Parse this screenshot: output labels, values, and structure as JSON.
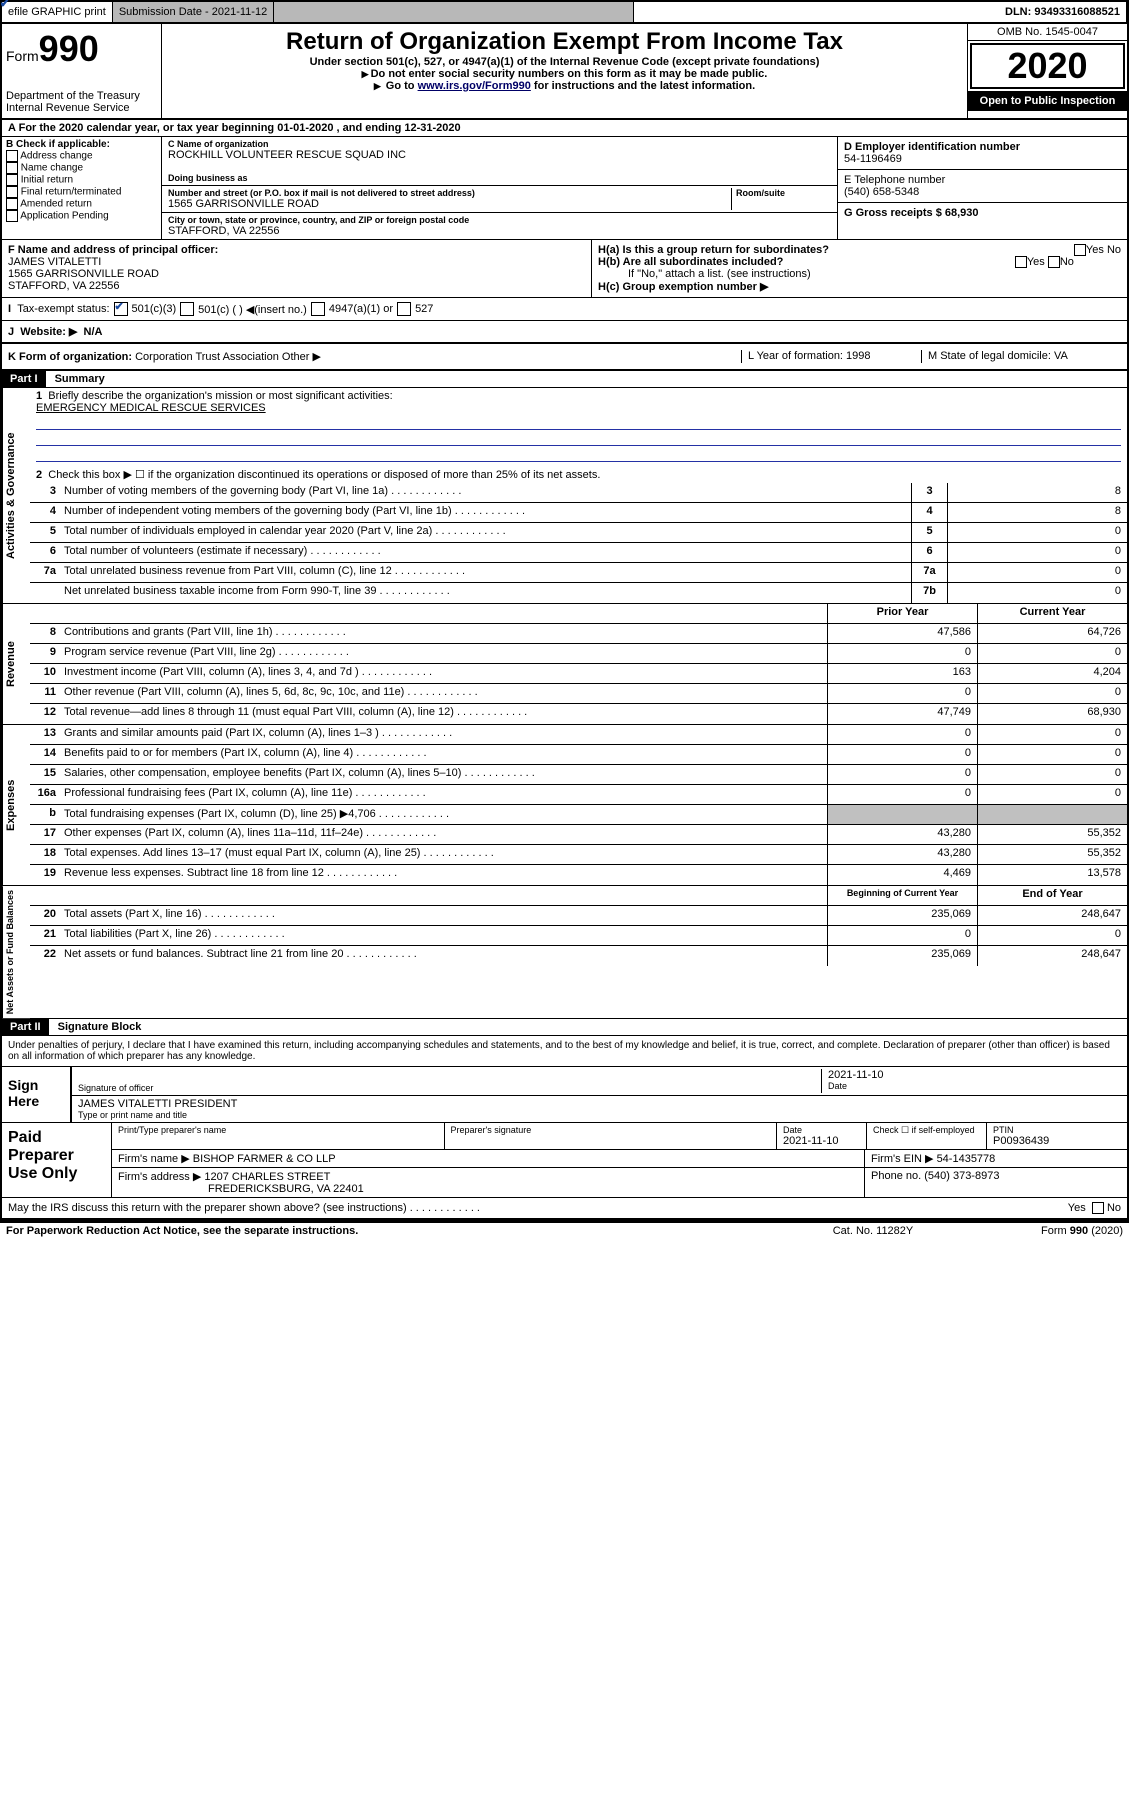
{
  "topbar": {
    "efile": "efile GRAPHIC print",
    "submission": "Submission Date - 2021-11-12",
    "dln": "DLN: 93493316088521"
  },
  "header": {
    "form_label": "Form",
    "form_num": "990",
    "dept": "Department of the Treasury\nInternal Revenue Service",
    "title": "Return of Organization Exempt From Income Tax",
    "sub": "Under section 501(c), 527, or 4947(a)(1) of the Internal Revenue Code (except private foundations)",
    "note1": "Do not enter social security numbers on this form as it may be made public.",
    "note2_pre": "Go to ",
    "note2_link": "www.irs.gov/Form990",
    "note2_post": " for instructions and the latest information.",
    "omb": "OMB No. 1545-0047",
    "year": "2020",
    "open": "Open to Public Inspection"
  },
  "rowA": "For the 2020 calendar year, or tax year beginning 01-01-2020   , and ending 12-31-2020",
  "boxB": {
    "title": "B Check if applicable:",
    "items": [
      "Address change",
      "Name change",
      "Initial return",
      "Final return/terminated",
      "Amended return",
      "Application Pending"
    ]
  },
  "boxC": {
    "name_lbl": "C Name of organization",
    "name": "ROCKHILL VOLUNTEER RESCUE SQUAD INC",
    "dba_lbl": "Doing business as",
    "addr_lbl": "Number and street (or P.O. box if mail is not delivered to street address)",
    "room_lbl": "Room/suite",
    "addr": "1565 GARRISONVILLE ROAD",
    "city_lbl": "City or town, state or province, country, and ZIP or foreign postal code",
    "city": "STAFFORD, VA  22556"
  },
  "boxD": {
    "lbl": "D Employer identification number",
    "val": "54-1196469"
  },
  "boxE": {
    "lbl": "E Telephone number",
    "val": "(540) 658-5348"
  },
  "boxG": {
    "lbl": "G Gross receipts $ 68,930"
  },
  "boxF": {
    "lbl": "F  Name and address of principal officer:",
    "name": "JAMES VITALETTI",
    "addr1": "1565 GARRISONVILLE ROAD",
    "addr2": "STAFFORD, VA  22556"
  },
  "boxH": {
    "a": "H(a)  Is this a group return for subordinates?",
    "b": "H(b)  Are all subordinates included?",
    "b_note": "If \"No,\" attach a list. (see instructions)",
    "c": "H(c)  Group exemption number ▶"
  },
  "taxI": "Tax-exempt status:",
  "taxOpts": [
    "501(c)(3)",
    "501(c) (  ) ◀(insert no.)",
    "4947(a)(1) or",
    "527"
  ],
  "websiteJ": {
    "lbl": "Website: ▶",
    "val": "N/A"
  },
  "rowK": {
    "lbl": "K Form of organization:",
    "opts": [
      "Corporation",
      "Trust",
      "Association",
      "Other ▶"
    ],
    "L": "L Year of formation: 1998",
    "M": "M State of legal domicile: VA"
  },
  "part1": {
    "hdr": "Part I",
    "title": "Summary",
    "l1_lbl": "Briefly describe the organization's mission or most significant activities:",
    "l1_val": "EMERGENCY MEDICAL RESCUE SERVICES",
    "l2": "Check this box ▶ ☐  if the organization discontinued its operations or disposed of more than 25% of its net assets.",
    "lines_ag": [
      {
        "n": "3",
        "d": "Number of voting members of the governing body (Part VI, line 1a)",
        "k": "3",
        "v": "8"
      },
      {
        "n": "4",
        "d": "Number of independent voting members of the governing body (Part VI, line 1b)",
        "k": "4",
        "v": "8"
      },
      {
        "n": "5",
        "d": "Total number of individuals employed in calendar year 2020 (Part V, line 2a)",
        "k": "5",
        "v": "0"
      },
      {
        "n": "6",
        "d": "Total number of volunteers (estimate if necessary)",
        "k": "6",
        "v": "0"
      },
      {
        "n": "7a",
        "d": "Total unrelated business revenue from Part VIII, column (C), line 12",
        "k": "7a",
        "v": "0"
      },
      {
        "n": "",
        "d": "Net unrelated business taxable income from Form 990-T, line 39",
        "k": "7b",
        "v": "0"
      }
    ],
    "col_prior": "Prior Year",
    "col_current": "Current Year",
    "lines_rev": [
      {
        "n": "8",
        "d": "Contributions and grants (Part VIII, line 1h)",
        "p": "47,586",
        "c": "64,726"
      },
      {
        "n": "9",
        "d": "Program service revenue (Part VIII, line 2g)",
        "p": "0",
        "c": "0"
      },
      {
        "n": "10",
        "d": "Investment income (Part VIII, column (A), lines 3, 4, and 7d )",
        "p": "163",
        "c": "4,204"
      },
      {
        "n": "11",
        "d": "Other revenue (Part VIII, column (A), lines 5, 6d, 8c, 9c, 10c, and 11e)",
        "p": "0",
        "c": "0"
      },
      {
        "n": "12",
        "d": "Total revenue—add lines 8 through 11 (must equal Part VIII, column (A), line 12)",
        "p": "47,749",
        "c": "68,930"
      }
    ],
    "lines_exp": [
      {
        "n": "13",
        "d": "Grants and similar amounts paid (Part IX, column (A), lines 1–3 )",
        "p": "0",
        "c": "0"
      },
      {
        "n": "14",
        "d": "Benefits paid to or for members (Part IX, column (A), line 4)",
        "p": "0",
        "c": "0"
      },
      {
        "n": "15",
        "d": "Salaries, other compensation, employee benefits (Part IX, column (A), lines 5–10)",
        "p": "0",
        "c": "0"
      },
      {
        "n": "16a",
        "d": "Professional fundraising fees (Part IX, column (A), line 11e)",
        "p": "0",
        "c": "0"
      },
      {
        "n": "b",
        "d": "Total fundraising expenses (Part IX, column (D), line 25) ▶4,706",
        "p": "",
        "c": ""
      },
      {
        "n": "17",
        "d": "Other expenses (Part IX, column (A), lines 11a–11d, 11f–24e)",
        "p": "43,280",
        "c": "55,352"
      },
      {
        "n": "18",
        "d": "Total expenses. Add lines 13–17 (must equal Part IX, column (A), line 25)",
        "p": "43,280",
        "c": "55,352"
      },
      {
        "n": "19",
        "d": "Revenue less expenses. Subtract line 18 from line 12",
        "p": "4,469",
        "c": "13,578"
      }
    ],
    "col_begin": "Beginning of Current Year",
    "col_end": "End of Year",
    "lines_net": [
      {
        "n": "20",
        "d": "Total assets (Part X, line 16)",
        "p": "235,069",
        "c": "248,647"
      },
      {
        "n": "21",
        "d": "Total liabilities (Part X, line 26)",
        "p": "0",
        "c": "0"
      },
      {
        "n": "22",
        "d": "Net assets or fund balances. Subtract line 21 from line 20",
        "p": "235,069",
        "c": "248,647"
      }
    ]
  },
  "part2": {
    "hdr": "Part II",
    "title": "Signature Block",
    "decl": "Under penalties of perjury, I declare that I have examined this return, including accompanying schedules and statements, and to the best of my knowledge and belief, it is true, correct, and complete. Declaration of preparer (other than officer) is based on all information of which preparer has any knowledge.",
    "sign_here": "Sign Here",
    "sig_officer": "Signature of officer",
    "sig_date": "2021-11-10",
    "date_lbl": "Date",
    "officer_name": "JAMES VITALETTI  PRESIDENT",
    "type_name": "Type or print name and title",
    "paid": "Paid Preparer Use Only",
    "prep_name_lbl": "Print/Type preparer's name",
    "prep_sig_lbl": "Preparer's signature",
    "prep_date_lbl": "Date",
    "prep_date": "2021-11-10",
    "check_self": "Check ☐ if self-employed",
    "ptin_lbl": "PTIN",
    "ptin": "P00936439",
    "firm_name_lbl": "Firm's name    ▶",
    "firm_name": "BISHOP FARMER & CO LLP",
    "firm_ein_lbl": "Firm's EIN ▶",
    "firm_ein": "54-1435778",
    "firm_addr_lbl": "Firm's address ▶",
    "firm_addr": "1207 CHARLES STREET",
    "firm_city": "FREDERICKSBURG, VA  22401",
    "phone_lbl": "Phone no.",
    "phone": "(540) 373-8973",
    "irs_q": "May the IRS discuss this return with the preparer shown above? (see instructions)"
  },
  "footer": {
    "left": "For Paperwork Reduction Act Notice, see the separate instructions.",
    "mid": "Cat. No. 11282Y",
    "right": "Form 990 (2020)"
  },
  "yesno": {
    "yes": "Yes",
    "no": "No"
  }
}
